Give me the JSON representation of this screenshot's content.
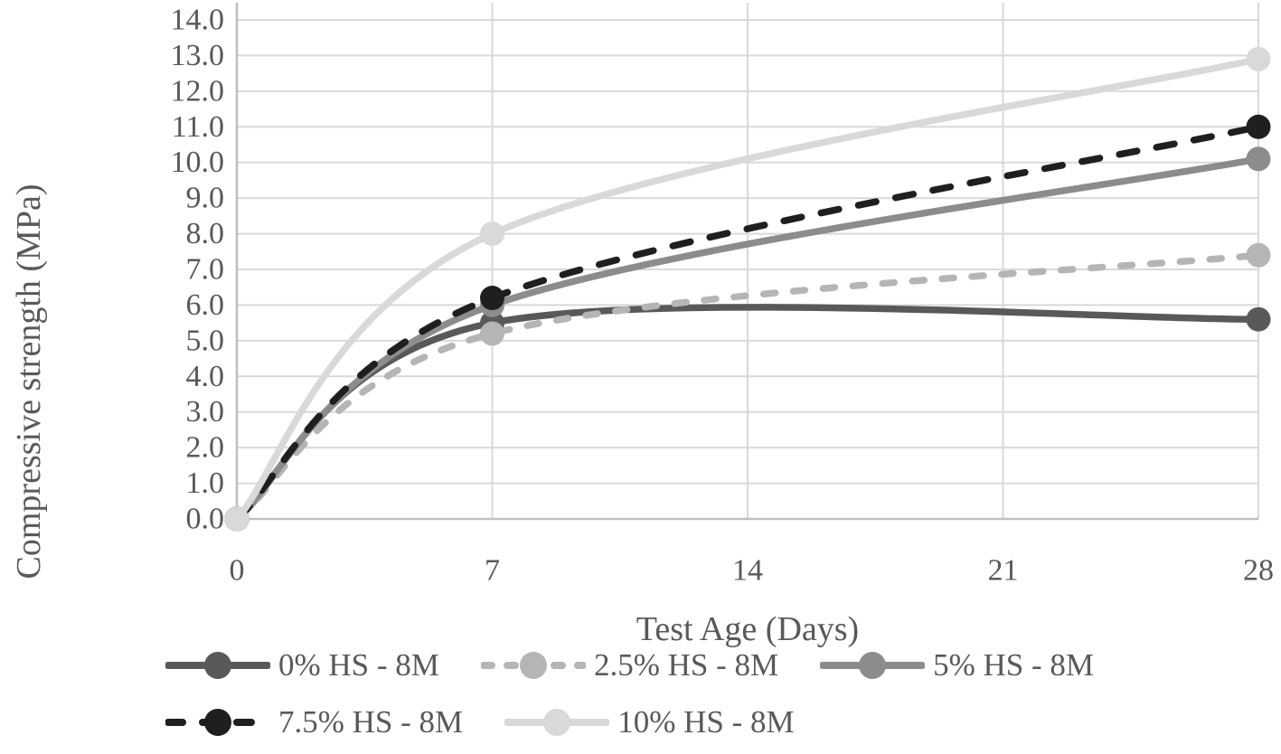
{
  "chart_data": {
    "type": "line",
    "title": "",
    "xlabel": "Test Age (Days)",
    "ylabel": "Compressive strength (MPa)",
    "xlim": [
      0,
      28
    ],
    "ylim": [
      0,
      14.5
    ],
    "x_tick_values": [
      0,
      7,
      14,
      21,
      28
    ],
    "x_tick_labels": [
      "0",
      "7",
      "14",
      "21",
      "28"
    ],
    "y_tick_step": 1.0,
    "y_tick_labels": [
      "0.0",
      "1.0",
      "2.0",
      "3.0",
      "4.0",
      "5.0",
      "6.0",
      "7.0",
      "8.0",
      "9.0",
      "10.0",
      "11.0",
      "12.0",
      "13.0",
      "14.0"
    ],
    "grid": true,
    "smooth_lines": true,
    "legend_position": "bottom",
    "x": [
      0,
      7,
      28
    ],
    "series": [
      {
        "name": "0% HS - 8M",
        "color": "#595959",
        "style": "solid",
        "values": [
          0.0,
          5.5,
          5.6
        ]
      },
      {
        "name": "2.5% HS - 8M",
        "color": "#b5b5b5",
        "style": "dashed",
        "values": [
          0.0,
          5.2,
          7.4
        ]
      },
      {
        "name": "5% HS - 8M",
        "color": "#8c8c8c",
        "style": "solid",
        "values": [
          0.0,
          6.0,
          10.1
        ]
      },
      {
        "name": "7.5% HS - 8M",
        "color": "#1f1f1f",
        "style": "dashed",
        "values": [
          0.0,
          6.2,
          11.0
        ]
      },
      {
        "name": "10% HS - 8M",
        "color": "#d9d9d9",
        "style": "solid",
        "values": [
          0.0,
          8.0,
          12.9
        ]
      }
    ],
    "colors": {
      "gridline": "#d9d9d9",
      "axis_line": "#bfbfbf",
      "tick_text": "#595959",
      "background": "#ffffff"
    }
  }
}
